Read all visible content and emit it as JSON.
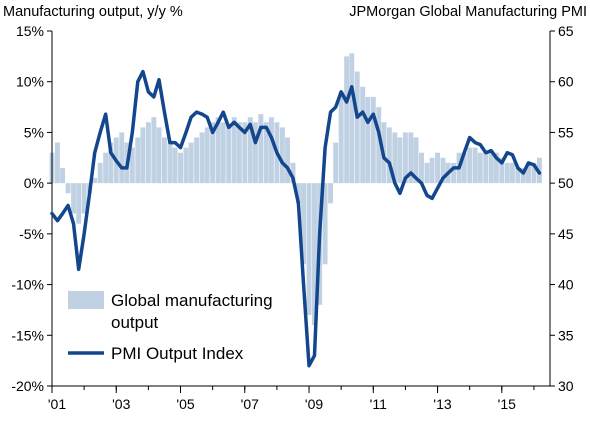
{
  "chart_data": {
    "type": "bar+line",
    "title_left": "Manufacturing output, y/y %",
    "title_right": "JPMorgan Global Manufacturing PMI",
    "x_ticks": [
      "'01",
      "'03",
      "'05",
      "'07",
      "'09",
      "'11",
      "'13",
      "'15"
    ],
    "x_tick_years": [
      2001,
      2003,
      2005,
      2007,
      2009,
      2011,
      2013,
      2015
    ],
    "xlim": [
      2001.0,
      2016.5
    ],
    "y_left": {
      "lim": [
        -20,
        15
      ],
      "ticks": [
        -20,
        -15,
        -10,
        -5,
        0,
        5,
        10,
        15
      ],
      "tick_labels": [
        "-20%",
        "-15%",
        "-10%",
        "-5%",
        "0%",
        "5%",
        "10%",
        "15%"
      ]
    },
    "y_right": {
      "lim": [
        30,
        65
      ],
      "ticks": [
        30,
        35,
        40,
        45,
        50,
        55,
        60,
        65
      ],
      "tick_labels": [
        "30",
        "35",
        "40",
        "45",
        "50",
        "55",
        "60",
        "65"
      ]
    },
    "grid": false,
    "legend": [
      {
        "label_lines": [
          "Global manufacturing",
          "output"
        ],
        "marker": "box"
      },
      {
        "label_lines": [
          "PMI Output Index"
        ],
        "marker": "line"
      }
    ],
    "legend_position": "lower-left",
    "colors": {
      "bars": "#c0d1e3",
      "line": "#13468d"
    },
    "series": [
      {
        "type": "bar",
        "axis": "left",
        "x": [
          2001.0,
          2001.17,
          2001.33,
          2001.5,
          2001.67,
          2001.83,
          2002.0,
          2002.17,
          2002.33,
          2002.5,
          2002.67,
          2002.83,
          2003.0,
          2003.17,
          2003.33,
          2003.5,
          2003.67,
          2003.83,
          2004.0,
          2004.17,
          2004.33,
          2004.5,
          2004.67,
          2004.83,
          2005.0,
          2005.17,
          2005.33,
          2005.5,
          2005.67,
          2005.83,
          2006.0,
          2006.17,
          2006.33,
          2006.5,
          2006.67,
          2006.83,
          2007.0,
          2007.17,
          2007.33,
          2007.5,
          2007.67,
          2007.83,
          2008.0,
          2008.17,
          2008.33,
          2008.5,
          2008.67,
          2008.83,
          2009.0,
          2009.17,
          2009.33,
          2009.5,
          2009.67,
          2009.83,
          2010.0,
          2010.17,
          2010.33,
          2010.5,
          2010.67,
          2010.83,
          2011.0,
          2011.17,
          2011.33,
          2011.5,
          2011.67,
          2011.83,
          2012.0,
          2012.17,
          2012.33,
          2012.5,
          2012.67,
          2012.83,
          2013.0,
          2013.17,
          2013.33,
          2013.5,
          2013.67,
          2013.83,
          2014.0,
          2014.17,
          2014.33,
          2014.5,
          2014.67,
          2014.83,
          2015.0,
          2015.17,
          2015.33,
          2015.5,
          2015.67,
          2015.83,
          2016.0,
          2016.17
        ],
        "values": [
          3.0,
          4.0,
          1.5,
          -1.0,
          -3.0,
          -4.0,
          -3.0,
          -1.0,
          0.5,
          2.0,
          3.0,
          4.0,
          4.5,
          5.0,
          4.0,
          3.5,
          4.5,
          5.5,
          6.0,
          6.5,
          5.5,
          4.5,
          4.0,
          3.5,
          3.0,
          3.5,
          4.0,
          4.5,
          5.0,
          5.5,
          6.0,
          6.5,
          6.0,
          5.5,
          6.5,
          6.0,
          6.0,
          6.5,
          6.0,
          6.8,
          6.0,
          6.5,
          6.0,
          5.5,
          4.5,
          2.0,
          -2.0,
          -8.0,
          -13.0,
          -14.0,
          -12.0,
          -8.0,
          -2.0,
          4.0,
          9.0,
          12.5,
          12.8,
          11.0,
          9.5,
          8.5,
          8.5,
          7.5,
          6.0,
          5.5,
          5.0,
          4.5,
          5.0,
          5.0,
          4.5,
          3.0,
          2.0,
          2.5,
          3.0,
          2.5,
          2.0,
          2.0,
          3.0,
          3.0,
          3.5,
          3.5,
          3.0,
          3.2,
          3.0,
          3.0,
          2.5,
          2.0,
          2.0,
          1.5,
          1.5,
          2.0,
          2.0,
          2.5
        ]
      },
      {
        "type": "line",
        "axis": "right",
        "x": [
          2001.0,
          2001.17,
          2001.33,
          2001.5,
          2001.67,
          2001.83,
          2002.0,
          2002.17,
          2002.33,
          2002.5,
          2002.67,
          2002.83,
          2003.0,
          2003.17,
          2003.33,
          2003.5,
          2003.67,
          2003.83,
          2004.0,
          2004.17,
          2004.33,
          2004.5,
          2004.67,
          2004.83,
          2005.0,
          2005.17,
          2005.33,
          2005.5,
          2005.67,
          2005.83,
          2006.0,
          2006.17,
          2006.33,
          2006.5,
          2006.67,
          2006.83,
          2007.0,
          2007.17,
          2007.33,
          2007.5,
          2007.67,
          2007.83,
          2008.0,
          2008.17,
          2008.33,
          2008.5,
          2008.67,
          2008.83,
          2009.0,
          2009.17,
          2009.33,
          2009.5,
          2009.67,
          2009.83,
          2010.0,
          2010.17,
          2010.33,
          2010.5,
          2010.67,
          2010.83,
          2011.0,
          2011.17,
          2011.33,
          2011.5,
          2011.67,
          2011.83,
          2012.0,
          2012.17,
          2012.33,
          2012.5,
          2012.67,
          2012.83,
          2013.0,
          2013.17,
          2013.33,
          2013.5,
          2013.67,
          2013.83,
          2014.0,
          2014.17,
          2014.33,
          2014.5,
          2014.67,
          2014.83,
          2015.0,
          2015.17,
          2015.33,
          2015.5,
          2015.67,
          2015.83,
          2016.0,
          2016.17
        ],
        "values": [
          47.0,
          46.3,
          47.0,
          47.8,
          46.0,
          41.5,
          45.0,
          49.0,
          53.0,
          55.0,
          56.8,
          53.0,
          52.2,
          51.5,
          51.5,
          55.0,
          60.0,
          61.0,
          59.0,
          58.5,
          60.2,
          57.0,
          54.0,
          54.0,
          53.5,
          55.0,
          56.5,
          57.0,
          56.8,
          56.5,
          55.0,
          56.0,
          57.0,
          55.5,
          56.0,
          55.5,
          55.0,
          55.8,
          54.0,
          55.5,
          55.5,
          54.5,
          53.0,
          52.0,
          51.5,
          50.5,
          48.0,
          40.0,
          32.0,
          33.0,
          45.0,
          53.5,
          57.0,
          57.5,
          59.0,
          58.0,
          59.5,
          56.5,
          57.0,
          56.0,
          56.8,
          55.0,
          52.5,
          52.0,
          50.0,
          49.0,
          50.5,
          51.0,
          50.5,
          50.0,
          48.8,
          48.5,
          49.5,
          50.5,
          51.0,
          51.5,
          51.5,
          53.0,
          54.5,
          54.0,
          53.8,
          53.0,
          53.2,
          52.5,
          52.0,
          53.0,
          52.8,
          51.5,
          51.0,
          52.0,
          51.8,
          51.0
        ]
      }
    ]
  }
}
